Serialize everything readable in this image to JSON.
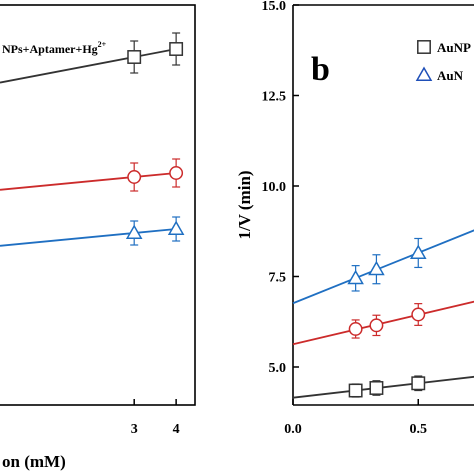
{
  "chart_data": [
    {
      "type": "scatter",
      "panel_label": "",
      "xlabel": "on (mM)",
      "ylabel": "",
      "xlim": [
        -0.2,
        4.45
      ],
      "ylim": [
        0,
        10
      ],
      "x_ticks": [
        3,
        4
      ],
      "x_tick_labels": [
        "3",
        "4"
      ],
      "legend_text": "NPs+Aptamer+Hg",
      "legend_sup": "2+",
      "series": [
        {
          "color": "#333333",
          "marker": "square",
          "x": [
            3,
            4
          ],
          "values": [
            8.7,
            8.9
          ],
          "err": [
            0.4,
            0.4
          ]
        },
        {
          "color": "#cc2b2b",
          "marker": "circle",
          "x": [
            3,
            4
          ],
          "values": [
            5.7,
            5.8
          ],
          "err": [
            0.35,
            0.35
          ]
        },
        {
          "color": "#1f6fc2",
          "marker": "triangle",
          "x": [
            3,
            4
          ],
          "values": [
            4.3,
            4.4
          ],
          "err": [
            0.3,
            0.3
          ]
        }
      ]
    },
    {
      "type": "scatter",
      "panel_label": "b",
      "xlabel": "",
      "ylabel": "1/V (min)",
      "xlim": [
        0,
        0.95
      ],
      "ylim": [
        3.95,
        15
      ],
      "x_ticks": [
        0.0,
        0.5
      ],
      "x_tick_labels": [
        "0.0",
        "0.5"
      ],
      "y_ticks": [
        5,
        7.5,
        10,
        12.5,
        15
      ],
      "y_tick_labels": [
        "5.0",
        "7.5",
        "10.0",
        "12.5",
        "15.0"
      ],
      "legend": [
        {
          "label": "AuNP",
          "marker": "square",
          "color": "#333333"
        },
        {
          "label": "AuN",
          "marker": "triangle",
          "color": "#1f4fb8"
        }
      ],
      "series": [
        {
          "color": "#333333",
          "marker": "square",
          "x": [
            0.25,
            0.333,
            0.5
          ],
          "values": [
            4.35,
            4.42,
            4.55
          ],
          "err": [
            0.18,
            0.2,
            0.2
          ]
        },
        {
          "color": "#cc2b2b",
          "marker": "circle",
          "x": [
            0.25,
            0.333,
            0.5
          ],
          "values": [
            6.05,
            6.15,
            6.45
          ],
          "err": [
            0.25,
            0.28,
            0.3
          ]
        },
        {
          "color": "#1f6fc2",
          "marker": "triangle",
          "x": [
            0.25,
            0.333,
            0.5
          ],
          "values": [
            7.45,
            7.7,
            8.15
          ],
          "err": [
            0.35,
            0.4,
            0.4
          ]
        }
      ]
    }
  ]
}
